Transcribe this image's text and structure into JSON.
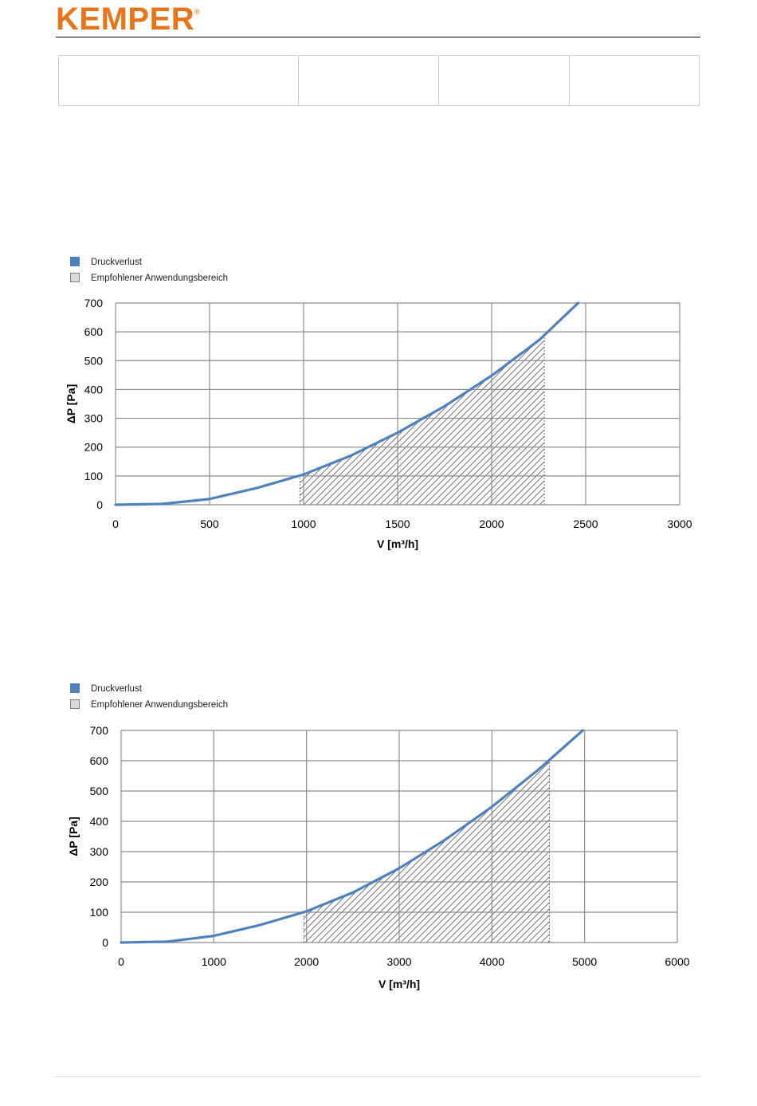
{
  "brand": {
    "name": "KEMPER",
    "mark": "®",
    "color": "#e8751a"
  },
  "header_table": {
    "cells": [
      "",
      "",
      "",
      ""
    ]
  },
  "colors": {
    "curve": "#4f81bd",
    "grid": "#8c8c8c",
    "hatch": "#5a5a5a",
    "legend_box_fill": "#d9d9d9"
  },
  "chart_data": [
    {
      "type": "line",
      "xlabel": "V [m³/h]",
      "ylabel": "ΔP [Pa]",
      "xlim": [
        0,
        3000
      ],
      "ylim": [
        0,
        700
      ],
      "x_ticks": [
        0,
        500,
        1000,
        1500,
        2000,
        2500,
        3000
      ],
      "y_ticks": [
        0,
        100,
        200,
        300,
        400,
        500,
        600,
        700
      ],
      "grid": true,
      "legend_placement": "top-left",
      "legend": [
        {
          "label": "Druckverlust",
          "kind": "solid"
        },
        {
          "label": "Empfohlener Anwendungsbereich",
          "kind": "hatched"
        }
      ],
      "series": [
        {
          "name": "Druckverlust",
          "x": [
            0,
            250,
            500,
            750,
            1000,
            1250,
            1500,
            1750,
            2000,
            2250,
            2460
          ],
          "y": [
            0,
            3,
            20,
            58,
            105,
            170,
            250,
            342,
            448,
            570,
            700
          ]
        }
      ],
      "recommended_range": {
        "x_from": 980,
        "x_to": 2280
      }
    },
    {
      "type": "line",
      "xlabel": "V [m³/h]",
      "ylabel": "ΔP [Pa]",
      "xlim": [
        0,
        6000
      ],
      "ylim": [
        0,
        700
      ],
      "x_ticks": [
        0,
        1000,
        2000,
        3000,
        4000,
        5000,
        6000
      ],
      "y_ticks": [
        0,
        100,
        200,
        300,
        400,
        500,
        600,
        700
      ],
      "grid": true,
      "legend_placement": "top-left",
      "legend": [
        {
          "label": "Druckverlust",
          "kind": "solid"
        },
        {
          "label": "Empfohlener Anwendungsbereich",
          "kind": "hatched"
        }
      ],
      "series": [
        {
          "name": "Druckverlust",
          "x": [
            0,
            500,
            1000,
            1500,
            2000,
            2500,
            3000,
            3500,
            4000,
            4500,
            4980
          ],
          "y": [
            0,
            3,
            22,
            58,
            103,
            165,
            245,
            340,
            448,
            570,
            700
          ]
        }
      ],
      "recommended_range": {
        "x_from": 1970,
        "x_to": 4620
      }
    }
  ]
}
